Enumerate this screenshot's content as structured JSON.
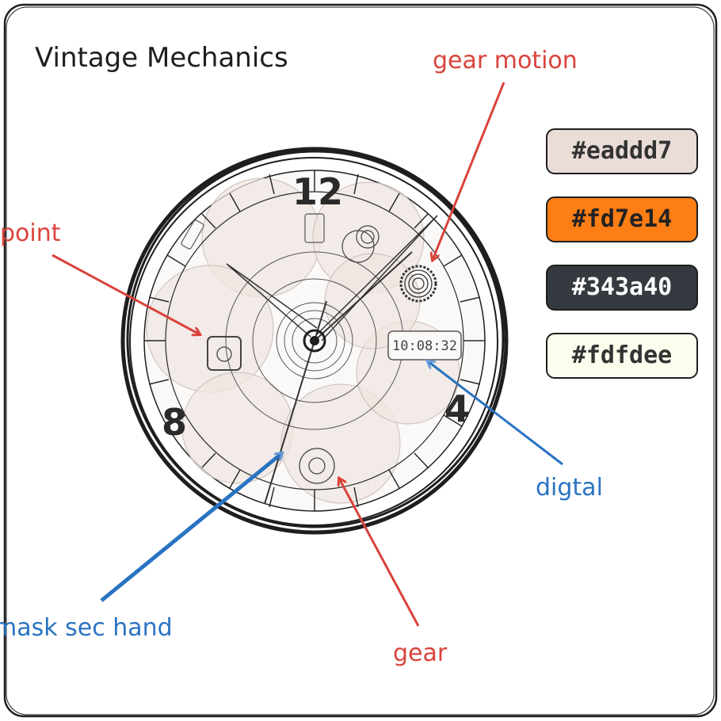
{
  "title": "Vintage Mechanics",
  "dial": {
    "numerals": [
      "12",
      "4",
      "8"
    ],
    "digital_time": "10:08:32"
  },
  "palette": [
    {
      "label": "#eaddd7",
      "color": "#eaddd7",
      "text_color": "#333333"
    },
    {
      "label": "#fd7e14",
      "color": "#fd7e14",
      "text_color": "#222222"
    },
    {
      "label": "#343a40",
      "color": "#343a40",
      "text_color": "#ffffff"
    },
    {
      "label": "#fdfdee",
      "color": "#fdfdee",
      "text_color": "#333333"
    }
  ],
  "annotations": {
    "gear_motion": "gear motion",
    "point": "point",
    "digital": "digtal",
    "mask_sec_hand": "mask sec hand",
    "gear": "gear"
  },
  "colors": {
    "red_annotation": "#d9433b",
    "blue_annotation": "#2a73c2",
    "ink": "#1e1e1e",
    "dial_fill": "#f6f1ee",
    "petal_fill": "#efe6e2"
  }
}
